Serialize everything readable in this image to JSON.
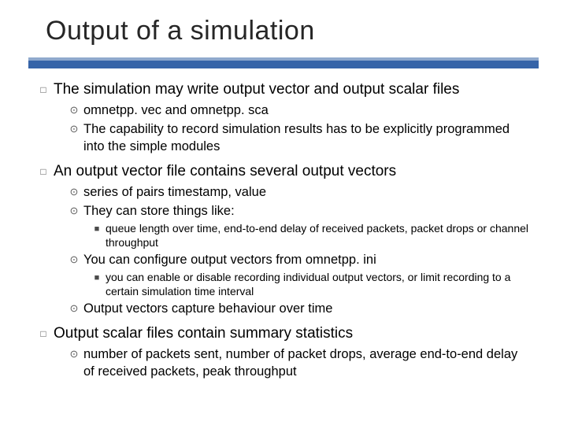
{
  "title": "Output of a simulation",
  "colors": {
    "rule_outer": "#3664a8",
    "rule_inner": "#8fa9cd",
    "text": "#000000",
    "bullet": "#5a5a5a",
    "bg": "#ffffff"
  },
  "typography": {
    "title_fontsize": 34,
    "l1_fontsize": 19,
    "l2_fontsize": 16.5,
    "l3_fontsize": 14,
    "family": "Arial"
  },
  "bullets": {
    "l1_glyph": "□",
    "l2_glyph": "⊙",
    "l3_glyph": "■"
  },
  "items": [
    {
      "text": "The simulation may write output vector and output scalar files",
      "children": [
        {
          "text": "omnetpp. vec and omnetpp. sca"
        },
        {
          "text": "The capability to record simulation results has to be explicitly programmed into the simple modules"
        }
      ]
    },
    {
      "text": "An output vector file contains several output vectors",
      "children": [
        {
          "text": "series of pairs timestamp, value"
        },
        {
          "text": "They can store things like:",
          "children": [
            {
              "text": "queue length over time, end-to-end delay of received packets, packet drops or channel throughput"
            }
          ]
        },
        {
          "text": "You can configure output vectors from omnetpp. ini",
          "children": [
            {
              "text": "you can enable or disable recording individual output vectors, or limit recording to a certain simulation time interval"
            }
          ]
        },
        {
          "text": "Output vectors capture behaviour over time"
        }
      ]
    },
    {
      "text": "Output scalar files contain summary statistics",
      "children": [
        {
          "text": "number of packets sent, number of packet drops, average end-to-end delay of received packets, peak throughput"
        }
      ]
    }
  ]
}
